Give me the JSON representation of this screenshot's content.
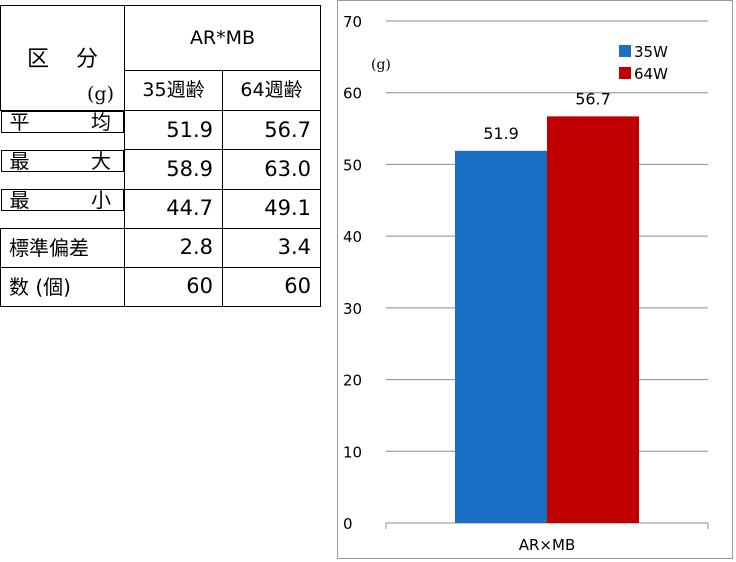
{
  "table": {
    "header_category": "区 分",
    "header_unit": "(g)",
    "header_group": "AR*MB",
    "columns": [
      "35週齢",
      "64週齢"
    ],
    "rows": [
      {
        "label_a": "平",
        "label_b": "均",
        "values": [
          "51.9",
          "56.7"
        ]
      },
      {
        "label_a": "最",
        "label_b": "大",
        "values": [
          "58.9",
          "63.0"
        ]
      },
      {
        "label_a": "最",
        "label_b": "小",
        "values": [
          "44.7",
          "49.1"
        ]
      },
      {
        "label": "標準偏差",
        "values": [
          "2.8",
          "3.4"
        ]
      },
      {
        "label": "数 (個)",
        "values": [
          "60",
          "60"
        ]
      }
    ]
  },
  "chart_data": {
    "type": "bar",
    "categories": [
      "AR×MB"
    ],
    "series": [
      {
        "name": "35W",
        "values": [
          51.9
        ],
        "color": "#1a6fc4"
      },
      {
        "name": "64W",
        "values": [
          56.7
        ],
        "color": "#c00000"
      }
    ],
    "data_labels": [
      "51.9",
      "56.7"
    ],
    "ylabel": "(g)",
    "ylim": [
      0,
      70
    ],
    "yticks": [
      "0",
      "10",
      "20",
      "30",
      "40",
      "50",
      "60",
      "70"
    ],
    "grid": true,
    "legend_position": "top-right"
  }
}
